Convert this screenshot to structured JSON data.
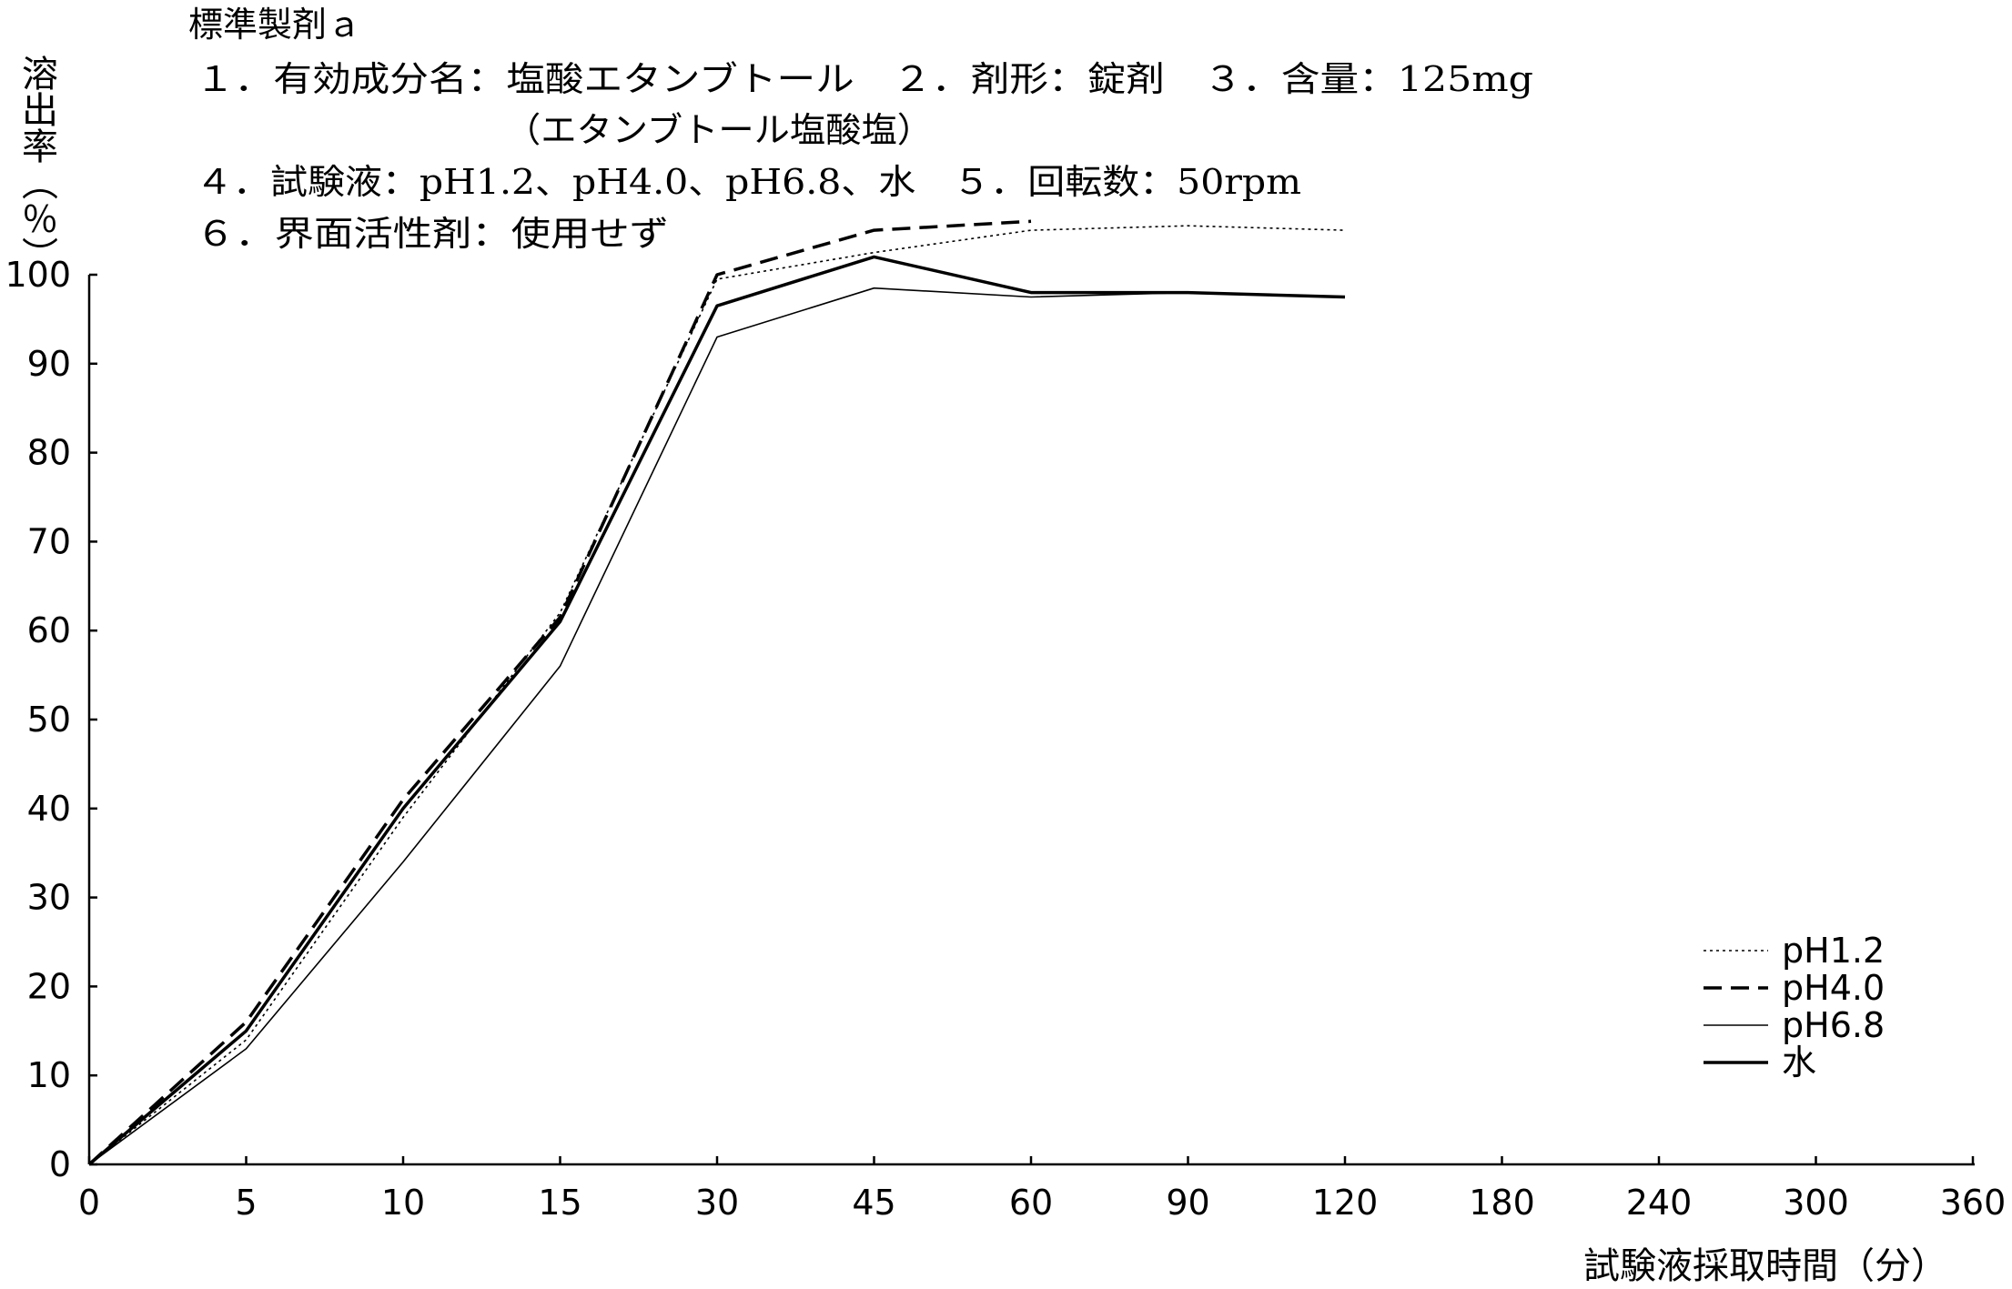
{
  "chart_data": {
    "type": "line",
    "title": "標準製剤ａ",
    "conditions": [
      "１．有効成分名：塩酸エタンブトール　２．剤形：錠剤　３．含量：125mg",
      "（エタンブトール塩酸塩）",
      "４．試験液：pH1.2、pH4.0、pH6.8、水　５．回転数：50rpm",
      "６．界面活性剤：使用せず"
    ],
    "ylabel": "溶出率（％）",
    "xlabel": "試験液採取時間（分）",
    "x_categories": [
      "0",
      "5",
      "10",
      "15",
      "30",
      "45",
      "60",
      "90",
      "120",
      "180",
      "240",
      "300",
      "360"
    ],
    "y_ticks": [
      "0",
      "10",
      "20",
      "30",
      "40",
      "50",
      "60",
      "70",
      "80",
      "90",
      "100"
    ],
    "ylim": [
      0,
      100
    ],
    "grid": false,
    "legend_position": "bottom-right",
    "series": [
      {
        "name": "pH1.2",
        "style": "dotted",
        "values": [
          0,
          14,
          39,
          62,
          99.5,
          102.5,
          105,
          105.5,
          105
        ]
      },
      {
        "name": "pH4.0",
        "style": "dashed",
        "values": [
          0,
          16,
          41,
          61.5,
          100,
          105,
          106,
          null,
          null
        ]
      },
      {
        "name": "pH6.8",
        "style": "thin",
        "values": [
          0,
          13,
          34,
          56,
          93,
          98.5,
          97.5,
          98,
          97.5
        ]
      },
      {
        "name": "水",
        "style": "solid-bold",
        "values": [
          0,
          15,
          40,
          61,
          96.5,
          102,
          98,
          98,
          97.5
        ]
      }
    ]
  }
}
